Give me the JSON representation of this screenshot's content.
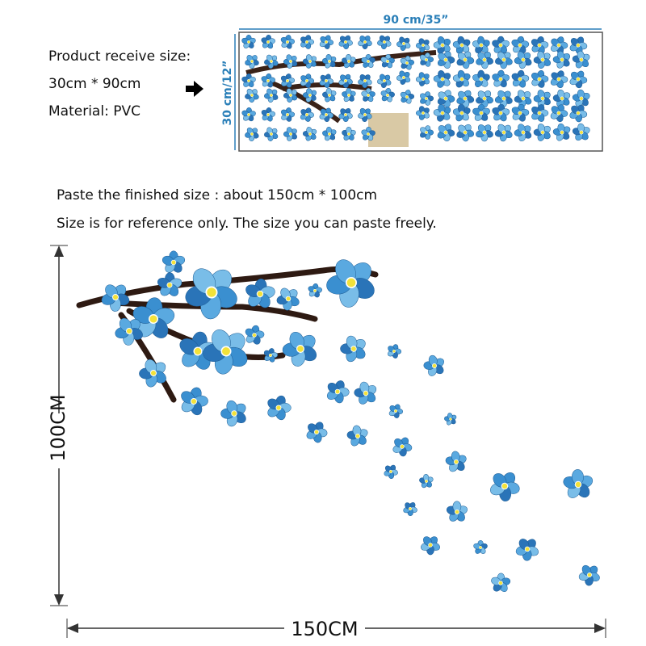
{
  "header": {
    "receive_size_label": "Product receive size:",
    "receive_size": "30cm * 90cm",
    "material": "Material: PVC"
  },
  "package": {
    "width_label": "90 cm/35”",
    "height_label": "30 cm/12”"
  },
  "notes": {
    "finished_size": "Paste the finished size : about 150cm * 100cm",
    "reference": "Size is for reference only. The size you can paste freely."
  },
  "dimensions": {
    "height": "100CM",
    "width": "150CM"
  }
}
